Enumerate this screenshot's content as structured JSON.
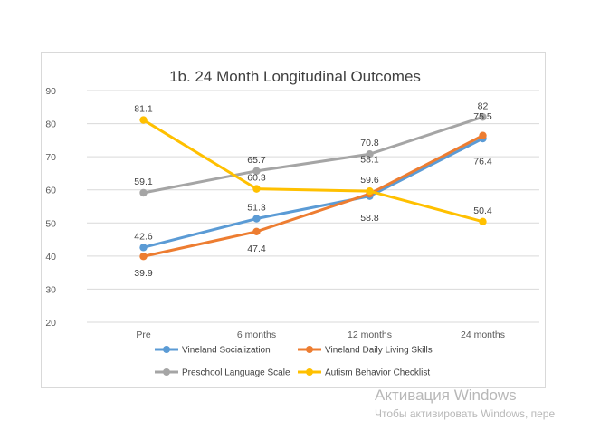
{
  "chart_data": {
    "type": "line",
    "title": "1b. 24 Month Longitudinal Outcomes",
    "categories": [
      "Pre",
      "6 months",
      "12 months",
      "24 months"
    ],
    "ylim": [
      20,
      90
    ],
    "yticks": [
      20,
      30,
      40,
      50,
      60,
      70,
      80,
      90
    ],
    "grid": true,
    "legend": "bottom",
    "series": [
      {
        "name": "Vineland Socialization",
        "color": "#5b9bd5",
        "values": [
          42.6,
          51.3,
          58.1,
          75.5
        ]
      },
      {
        "name": "Vineland Daily Living Skills",
        "color": "#ed7d31",
        "values": [
          39.9,
          47.4,
          58.8,
          76.4
        ]
      },
      {
        "name": "Preschool Language Scale",
        "color": "#a5a5a5",
        "values": [
          59.1,
          65.7,
          70.8,
          82
        ]
      },
      {
        "name": "Autism Behavior Checklist",
        "color": "#ffc000",
        "values": [
          81.1,
          60.3,
          59.6,
          50.4
        ]
      }
    ]
  },
  "watermark": {
    "title": "Активация Windows",
    "subtitle": "Чтобы активировать Windows, пере"
  }
}
